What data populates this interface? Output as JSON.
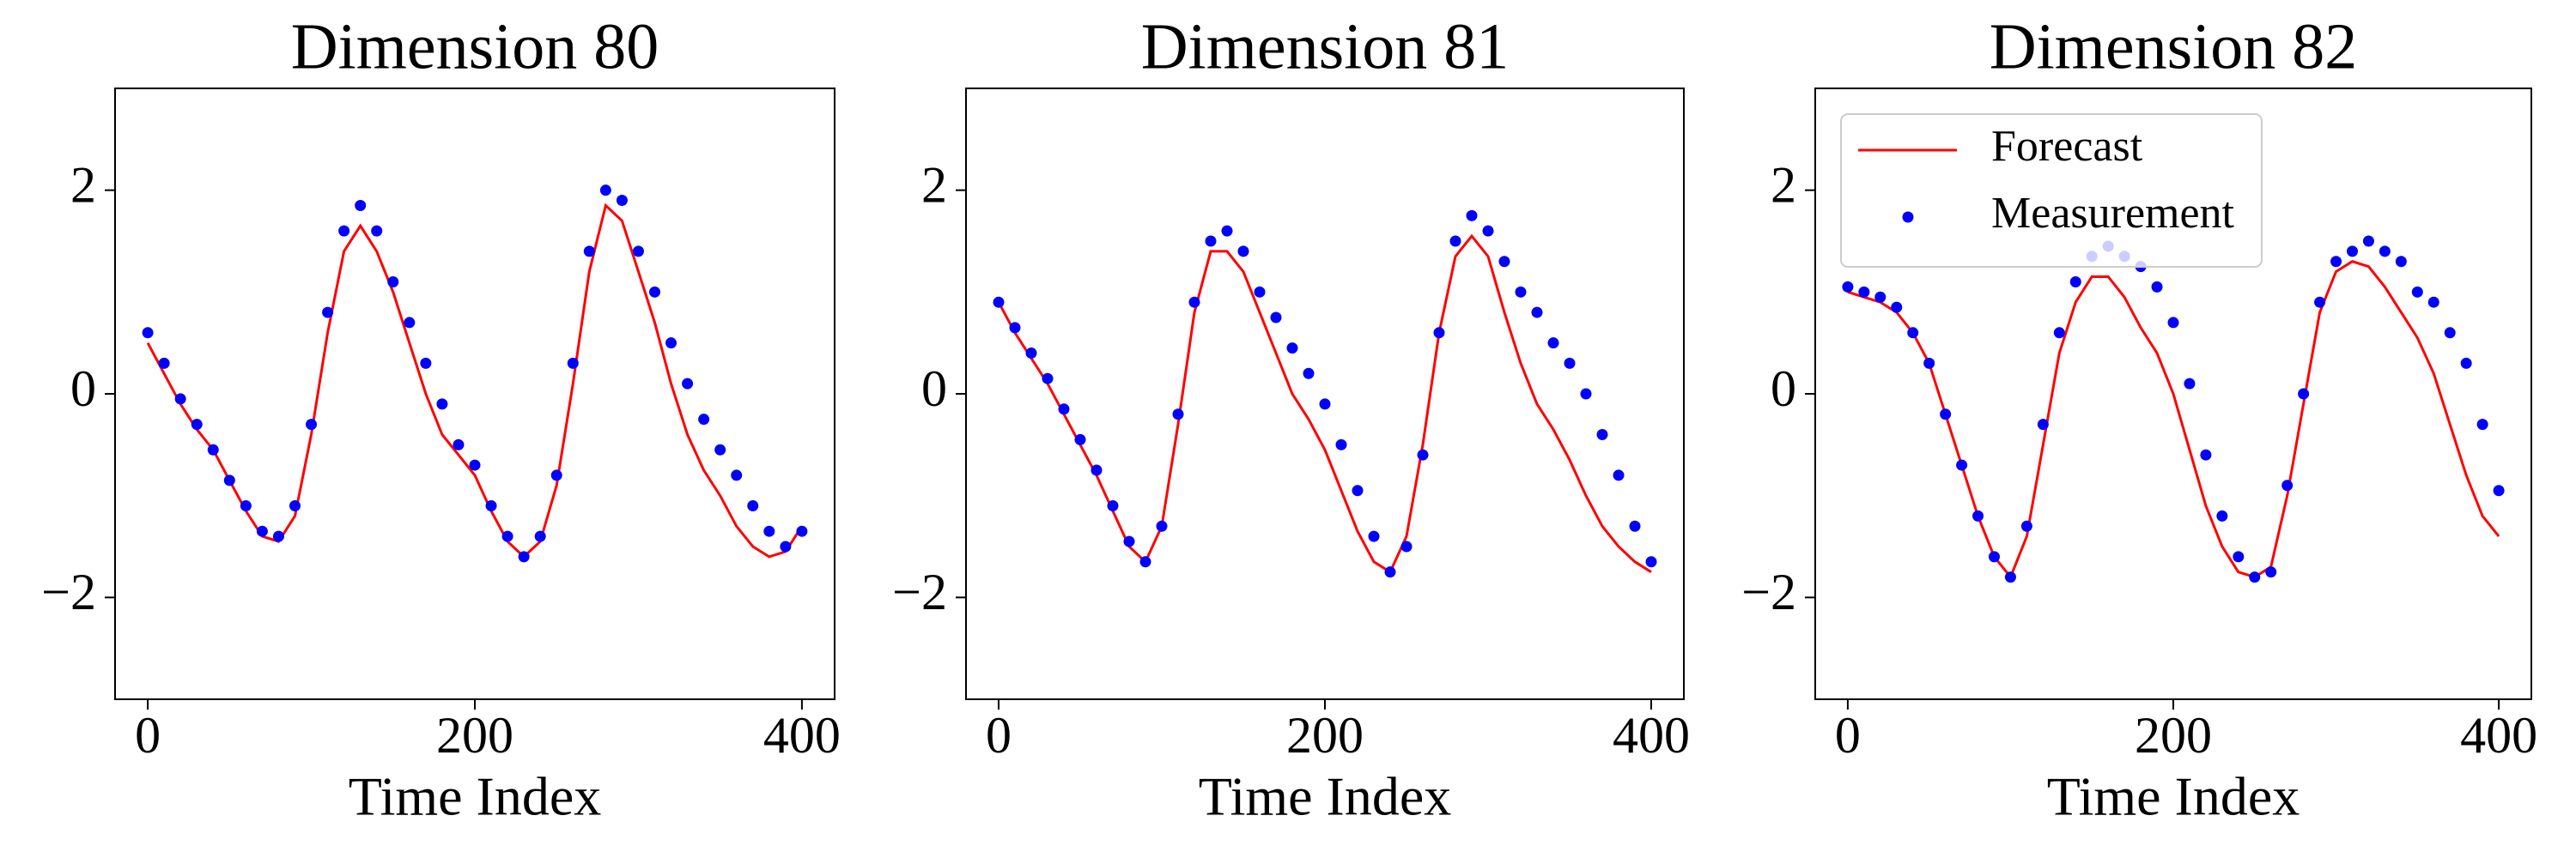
{
  "chart_data": [
    {
      "type": "line",
      "title": "Dimension 80",
      "xlabel": "Time Index",
      "x": [
        0,
        10,
        20,
        30,
        40,
        50,
        60,
        70,
        80,
        90,
        100,
        110,
        120,
        130,
        140,
        150,
        160,
        170,
        180,
        190,
        200,
        210,
        220,
        230,
        240,
        250,
        260,
        270,
        280,
        290,
        300,
        310,
        320,
        330,
        340,
        350,
        360,
        370,
        380,
        390,
        400
      ],
      "series": [
        {
          "mode": "line",
          "color": "#ff0000",
          "values": [
            0.5,
            0.2,
            -0.1,
            -0.35,
            -0.55,
            -0.85,
            -1.15,
            -1.4,
            -1.45,
            -1.2,
            -0.4,
            0.6,
            1.4,
            1.65,
            1.4,
            1.0,
            0.5,
            0.0,
            -0.4,
            -0.6,
            -0.8,
            -1.15,
            -1.45,
            -1.6,
            -1.45,
            -0.9,
            0.1,
            1.2,
            1.85,
            1.7,
            1.2,
            0.7,
            0.1,
            -0.4,
            -0.75,
            -1.0,
            -1.3,
            -1.5,
            -1.6,
            -1.55,
            -1.3
          ]
        },
        {
          "mode": "markers",
          "color": "#0000ff",
          "values": [
            0.6,
            0.3,
            -0.05,
            -0.3,
            -0.55,
            -0.85,
            -1.1,
            -1.35,
            -1.4,
            -1.1,
            -0.3,
            0.8,
            1.6,
            1.85,
            1.6,
            1.1,
            0.7,
            0.3,
            -0.1,
            -0.5,
            -0.7,
            -1.1,
            -1.4,
            -1.6,
            -1.4,
            -0.8,
            0.3,
            1.4,
            2.0,
            1.9,
            1.4,
            1.0,
            0.5,
            0.1,
            -0.25,
            -0.55,
            -0.8,
            -1.1,
            -1.35,
            -1.5,
            -1.35
          ]
        }
      ],
      "xlim": [
        -20,
        420
      ],
      "ylim": [
        -3,
        3
      ],
      "xticks": [
        0,
        200,
        400
      ],
      "yticks": [
        {
          "value": -2,
          "label": "−2"
        },
        0,
        2
      ]
    },
    {
      "type": "line",
      "title": "Dimension 81",
      "xlabel": "Time Index",
      "x": [
        0,
        10,
        20,
        30,
        40,
        50,
        60,
        70,
        80,
        90,
        100,
        110,
        120,
        130,
        140,
        150,
        160,
        170,
        180,
        190,
        200,
        210,
        220,
        230,
        240,
        250,
        260,
        270,
        280,
        290,
        300,
        310,
        320,
        330,
        340,
        350,
        360,
        370,
        380,
        390,
        400
      ],
      "series": [
        {
          "mode": "line",
          "color": "#ff0000",
          "values": [
            0.9,
            0.6,
            0.35,
            0.1,
            -0.2,
            -0.5,
            -0.8,
            -1.15,
            -1.5,
            -1.65,
            -1.3,
            -0.3,
            0.8,
            1.4,
            1.4,
            1.2,
            0.8,
            0.4,
            0.0,
            -0.25,
            -0.55,
            -0.95,
            -1.35,
            -1.65,
            -1.75,
            -1.4,
            -0.5,
            0.6,
            1.35,
            1.55,
            1.35,
            0.8,
            0.3,
            -0.1,
            -0.35,
            -0.65,
            -1.0,
            -1.3,
            -1.5,
            -1.65,
            -1.75
          ]
        },
        {
          "mode": "markers",
          "color": "#0000ff",
          "values": [
            0.9,
            0.65,
            0.4,
            0.15,
            -0.15,
            -0.45,
            -0.75,
            -1.1,
            -1.45,
            -1.65,
            -1.3,
            -0.2,
            0.9,
            1.5,
            1.6,
            1.4,
            1.0,
            0.75,
            0.45,
            0.2,
            -0.1,
            -0.5,
            -0.95,
            -1.4,
            -1.75,
            -1.5,
            -0.6,
            0.6,
            1.5,
            1.75,
            1.6,
            1.3,
            1.0,
            0.8,
            0.5,
            0.3,
            0.0,
            -0.4,
            -0.8,
            -1.3,
            -1.65
          ]
        }
      ],
      "xlim": [
        -20,
        420
      ],
      "ylim": [
        -3,
        3
      ],
      "xticks": [
        0,
        200,
        400
      ],
      "yticks": [
        {
          "value": -2,
          "label": "−2"
        },
        0,
        2
      ]
    },
    {
      "type": "line",
      "title": "Dimension 82",
      "xlabel": "Time Index",
      "legend": "upper left",
      "x": [
        0,
        10,
        20,
        30,
        40,
        50,
        60,
        70,
        80,
        90,
        100,
        110,
        120,
        130,
        140,
        150,
        160,
        170,
        180,
        190,
        200,
        210,
        220,
        230,
        240,
        250,
        260,
        270,
        280,
        290,
        300,
        310,
        320,
        330,
        340,
        350,
        360,
        370,
        380,
        390,
        400
      ],
      "series": [
        {
          "name": "Forecast",
          "mode": "line",
          "color": "#ff0000",
          "values": [
            1.0,
            0.95,
            0.9,
            0.8,
            0.6,
            0.3,
            -0.2,
            -0.7,
            -1.2,
            -1.6,
            -1.8,
            -1.4,
            -0.5,
            0.4,
            0.9,
            1.15,
            1.15,
            0.95,
            0.65,
            0.4,
            0.0,
            -0.55,
            -1.1,
            -1.5,
            -1.75,
            -1.8,
            -1.7,
            -1.0,
            -0.1,
            0.8,
            1.2,
            1.3,
            1.25,
            1.05,
            0.8,
            0.55,
            0.2,
            -0.3,
            -0.8,
            -1.2,
            -1.4
          ]
        },
        {
          "name": "Measurement",
          "mode": "markers",
          "color": "#0000ff",
          "values": [
            1.05,
            1.0,
            0.95,
            0.85,
            0.6,
            0.3,
            -0.2,
            -0.7,
            -1.2,
            -1.6,
            -1.8,
            -1.3,
            -0.3,
            0.6,
            1.1,
            1.35,
            1.45,
            1.35,
            1.25,
            1.05,
            0.7,
            0.1,
            -0.6,
            -1.2,
            -1.6,
            -1.8,
            -1.75,
            -0.9,
            0.0,
            0.9,
            1.3,
            1.4,
            1.5,
            1.4,
            1.3,
            1.0,
            0.9,
            0.6,
            0.3,
            -0.3,
            -0.95
          ]
        }
      ],
      "xlim": [
        -20,
        420
      ],
      "ylim": [
        -3,
        3
      ],
      "xticks": [
        0,
        200,
        400
      ],
      "yticks": [
        {
          "value": -2,
          "label": "−2"
        },
        0,
        2
      ]
    }
  ]
}
